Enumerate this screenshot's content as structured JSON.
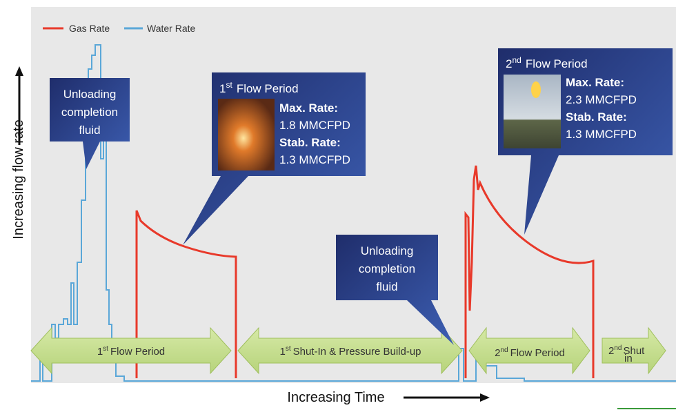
{
  "legend": {
    "gas": "Gas Rate",
    "water": "Water Rate"
  },
  "y_label": "Increasing flow rate",
  "x_label": "Increasing Time",
  "callouts": [
    {
      "text": [
        "Unloading",
        "completion",
        "fluid"
      ]
    },
    {
      "num": "1",
      "sup": "st",
      "title": "Flow Period",
      "lines": [
        "Max. Rate:",
        "1.8 MMCFPD",
        "Stab. Rate:",
        "1.3 MMCFPD"
      ]
    },
    {
      "text": [
        "Unloading",
        "completion",
        "fluid"
      ]
    },
    {
      "num": "2",
      "sup": "nd",
      "title": "Flow Period",
      "lines": [
        "Max. Rate:",
        "2.3 MMCFPD",
        "Stab. Rate:",
        "1.3 MMCFPD"
      ]
    }
  ],
  "phases": [
    {
      "num": "1",
      "sup": "st",
      "text": "Flow Period"
    },
    {
      "num": "1",
      "sup": "st",
      "text": "Shut-In & Pressure Build-up"
    },
    {
      "num": "2",
      "sup": "nd",
      "text": "Flow Period"
    },
    {
      "num": "2",
      "sup": "nd",
      "text": "Shut",
      "sub": "in"
    }
  ]
}
